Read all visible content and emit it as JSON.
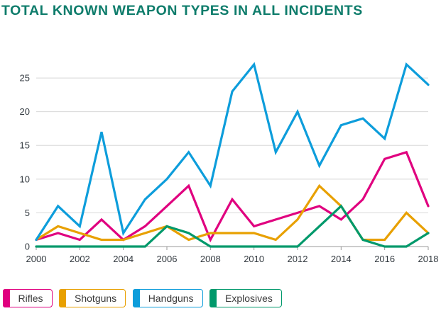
{
  "title": "TOTAL KNOWN WEAPON TYPES IN ALL INCIDENTS",
  "colors": {
    "title": "#0e7c6b",
    "grid": "#d8d8d8",
    "axis": "#9a9a9a"
  },
  "chart_data": {
    "type": "line",
    "title": "TOTAL KNOWN WEAPON TYPES IN ALL INCIDENTS",
    "xlabel": "",
    "ylabel": "",
    "x": [
      2000,
      2001,
      2002,
      2003,
      2004,
      2005,
      2006,
      2007,
      2008,
      2009,
      2010,
      2011,
      2012,
      2013,
      2014,
      2015,
      2016,
      2017,
      2018
    ],
    "x_ticks": [
      "2000",
      "2002",
      "2004",
      "2006",
      "2008",
      "2010",
      "2012",
      "2014",
      "2016",
      "2018"
    ],
    "y_ticks": [
      "0",
      "5",
      "10",
      "15",
      "20",
      "25"
    ],
    "xlim": [
      2000,
      2018
    ],
    "ylim": [
      0,
      29
    ],
    "grid": true,
    "legend": "bottom",
    "series": [
      {
        "name": "Rifles",
        "color": "#e0007f",
        "values": [
          1,
          2,
          1,
          4,
          1,
          3,
          6,
          9,
          1,
          7,
          3,
          4,
          5,
          6,
          4,
          7,
          13,
          14,
          6
        ]
      },
      {
        "name": "Shotguns",
        "color": "#e8a000",
        "values": [
          1,
          3,
          2,
          1,
          1,
          2,
          3,
          1,
          2,
          2,
          2,
          1,
          4,
          9,
          6,
          1,
          1,
          5,
          2
        ]
      },
      {
        "name": "Handguns",
        "color": "#0d9ddb",
        "values": [
          1,
          6,
          3,
          17,
          2,
          7,
          10,
          14,
          9,
          23,
          27,
          14,
          20,
          12,
          18,
          19,
          16,
          27,
          24
        ]
      },
      {
        "name": "Explosives",
        "color": "#00996b",
        "values": [
          0,
          0,
          0,
          0,
          0,
          0,
          3,
          2,
          0,
          0,
          0,
          0,
          0,
          3,
          6,
          1,
          0,
          0,
          2
        ]
      }
    ]
  }
}
